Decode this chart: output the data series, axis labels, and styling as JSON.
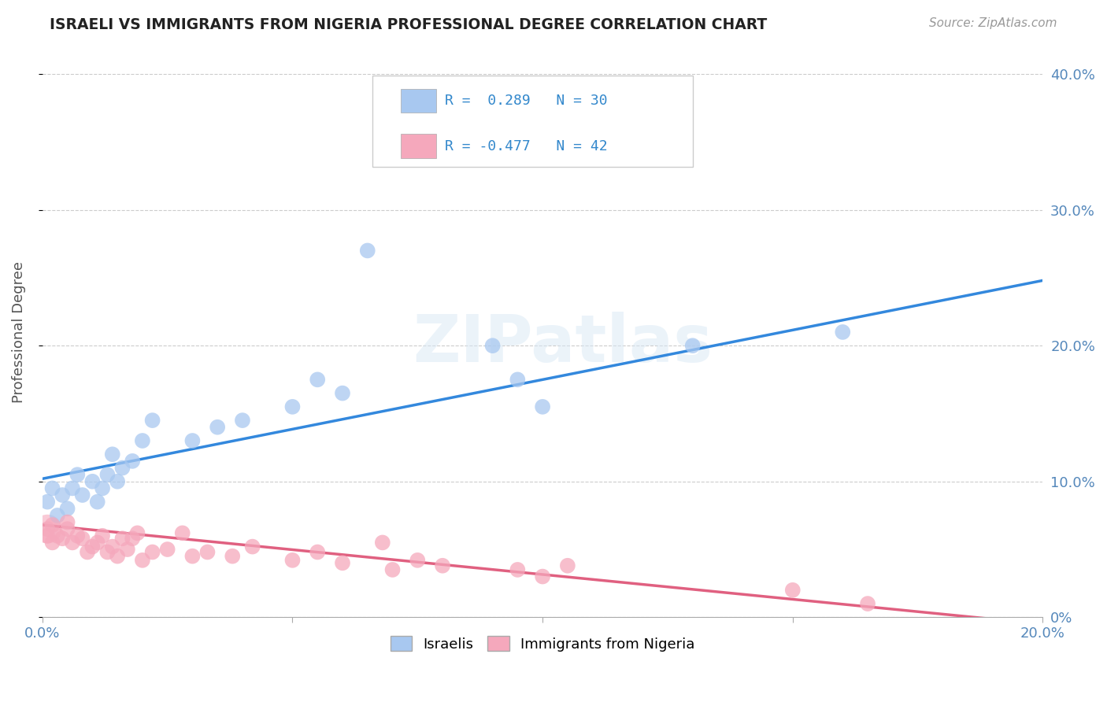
{
  "title": "ISRAELI VS IMMIGRANTS FROM NIGERIA PROFESSIONAL DEGREE CORRELATION CHART",
  "source": "Source: ZipAtlas.com",
  "ylabel": "Professional Degree",
  "xlim": [
    0.0,
    0.2
  ],
  "ylim": [
    0.0,
    0.42
  ],
  "blue_color": "#A8C8F0",
  "pink_color": "#F5A8BC",
  "blue_line_color": "#3388DD",
  "pink_line_color": "#E06080",
  "legend_text_color": "#3388CC",
  "watermark": "ZIPatlas",
  "israelis_x": [
    0.001,
    0.002,
    0.003,
    0.004,
    0.005,
    0.006,
    0.007,
    0.008,
    0.01,
    0.011,
    0.012,
    0.013,
    0.014,
    0.015,
    0.016,
    0.018,
    0.02,
    0.022,
    0.03,
    0.035,
    0.04,
    0.05,
    0.055,
    0.06,
    0.065,
    0.09,
    0.095,
    0.1,
    0.13,
    0.16
  ],
  "israelis_y": [
    0.085,
    0.095,
    0.075,
    0.09,
    0.08,
    0.095,
    0.105,
    0.09,
    0.1,
    0.085,
    0.095,
    0.105,
    0.12,
    0.1,
    0.11,
    0.115,
    0.13,
    0.145,
    0.13,
    0.14,
    0.145,
    0.155,
    0.175,
    0.165,
    0.27,
    0.2,
    0.175,
    0.155,
    0.2,
    0.21
  ],
  "nigeria_x": [
    0.001,
    0.001,
    0.002,
    0.002,
    0.003,
    0.004,
    0.005,
    0.005,
    0.006,
    0.007,
    0.008,
    0.009,
    0.01,
    0.011,
    0.012,
    0.013,
    0.014,
    0.015,
    0.016,
    0.017,
    0.018,
    0.019,
    0.02,
    0.022,
    0.025,
    0.028,
    0.03,
    0.033,
    0.038,
    0.042,
    0.05,
    0.055,
    0.06,
    0.068,
    0.07,
    0.075,
    0.08,
    0.095,
    0.1,
    0.105,
    0.15,
    0.165
  ],
  "nigeria_y": [
    0.065,
    0.06,
    0.068,
    0.055,
    0.06,
    0.058,
    0.065,
    0.07,
    0.055,
    0.06,
    0.058,
    0.048,
    0.052,
    0.055,
    0.06,
    0.048,
    0.052,
    0.045,
    0.058,
    0.05,
    0.058,
    0.062,
    0.042,
    0.048,
    0.05,
    0.062,
    0.045,
    0.048,
    0.045,
    0.052,
    0.042,
    0.048,
    0.04,
    0.055,
    0.035,
    0.042,
    0.038,
    0.035,
    0.03,
    0.038,
    0.02,
    0.01
  ],
  "blue_line_y0": 0.102,
  "blue_line_y1": 0.248,
  "pink_line_y0": 0.068,
  "pink_line_y1": -0.005
}
